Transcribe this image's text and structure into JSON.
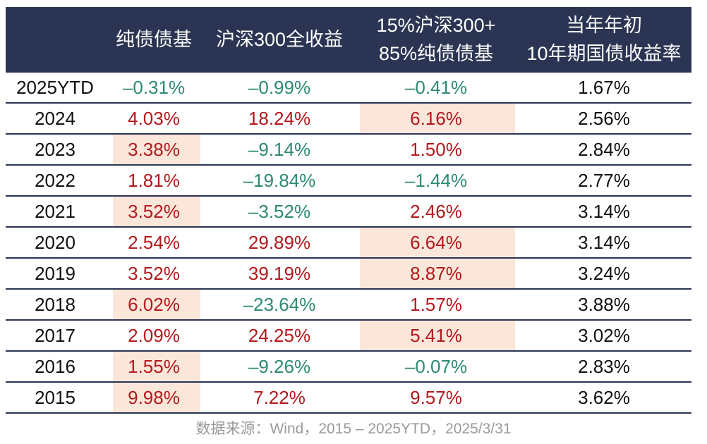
{
  "chart_data": {
    "type": "table",
    "columns": [
      "",
      "纯债债基",
      "沪深300全收益",
      "15%沪深300+\n85%纯债债基",
      "当年年初\n10年期国债收益率"
    ],
    "header_lines": [
      [
        ""
      ],
      [
        "纯债债基"
      ],
      [
        "沪深300全收益"
      ],
      [
        "15%沪深300+",
        "85%纯债债基"
      ],
      [
        "当年年初",
        "10年期国债收益率"
      ]
    ],
    "rows": [
      {
        "year": "2025YTD",
        "bond": "–0.31%",
        "csi300": "–0.99%",
        "mix": "–0.41%",
        "cgb10y": "1.67%"
      },
      {
        "year": "2024",
        "bond": "4.03%",
        "csi300": "18.24%",
        "mix": "6.16%",
        "cgb10y": "2.56%"
      },
      {
        "year": "2023",
        "bond": "3.38%",
        "csi300": "–9.14%",
        "mix": "1.50%",
        "cgb10y": "2.84%"
      },
      {
        "year": "2022",
        "bond": "1.81%",
        "csi300": "–19.84%",
        "mix": "–1.44%",
        "cgb10y": "2.77%"
      },
      {
        "year": "2021",
        "bond": "3.52%",
        "csi300": "–3.52%",
        "mix": "2.46%",
        "cgb10y": "3.14%"
      },
      {
        "year": "2020",
        "bond": "2.54%",
        "csi300": "29.89%",
        "mix": "6.64%",
        "cgb10y": "3.14%"
      },
      {
        "year": "2019",
        "bond": "3.52%",
        "csi300": "39.19%",
        "mix": "8.87%",
        "cgb10y": "3.24%"
      },
      {
        "year": "2018",
        "bond": "6.02%",
        "csi300": "–23.64%",
        "mix": "1.57%",
        "cgb10y": "3.88%"
      },
      {
        "year": "2017",
        "bond": "2.09%",
        "csi300": "24.25%",
        "mix": "5.41%",
        "cgb10y": "3.02%"
      },
      {
        "year": "2016",
        "bond": "1.55%",
        "csi300": "–9.26%",
        "mix": "–0.07%",
        "cgb10y": "2.83%"
      },
      {
        "year": "2015",
        "bond": "9.98%",
        "csi300": "7.22%",
        "mix": "9.57%",
        "cgb10y": "3.62%"
      }
    ],
    "highlighted_cells": [
      {
        "row": "2024",
        "column": "mix"
      },
      {
        "row": "2023",
        "column": "bond"
      },
      {
        "row": "2021",
        "column": "bond"
      },
      {
        "row": "2020",
        "column": "mix"
      },
      {
        "row": "2019",
        "column": "mix"
      },
      {
        "row": "2018",
        "column": "bond"
      },
      {
        "row": "2017",
        "column": "mix"
      },
      {
        "row": "2016",
        "column": "bond"
      },
      {
        "row": "2015",
        "column": "bond"
      }
    ]
  },
  "colors": {
    "header_bg": "#2b3553",
    "header_text": "#ffffff",
    "positive": "#b3191d",
    "negative": "#2e8a73",
    "highlight": "#fbe6da",
    "rule": "#2b3553",
    "source_text": "#9a9a9a"
  },
  "source": "数据来源：Wind，2015 – 2025YTD，2025/3/31"
}
